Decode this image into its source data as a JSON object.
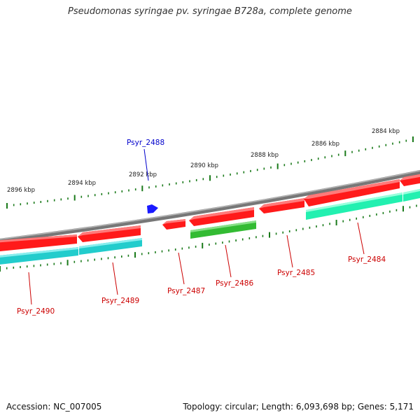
{
  "title": "Pseudomonas syringae pv. syringae B728a, complete genome",
  "footer": {
    "accession": "Accession: NC_007005",
    "summary": "Topology: circular; Length: 6,093,698 bp; Genes: 5,171"
  },
  "colors": {
    "backbone": "#8a8a8a",
    "tick": "#1a7a1a",
    "label_red": "#cc0000",
    "label_blue": "#0000cc",
    "gene_red": "#ff1a1a",
    "gene_teal": "#22cccc",
    "gene_mint": "#22f0b0",
    "gene_green": "#33bb33",
    "gene_blue": "#1a1aff"
  },
  "kbp_labels": [
    "2884 kbp",
    "2886 kbp",
    "2888 kbp",
    "2890 kbp",
    "2892 kbp",
    "2894 kbp",
    "2896 kbp"
  ],
  "genes": [
    {
      "id": "Psyr_2484",
      "color": "red"
    },
    {
      "id": "Psyr_2485",
      "color": "red"
    },
    {
      "id": "Psyr_2486",
      "color": "red"
    },
    {
      "id": "Psyr_2487",
      "color": "red"
    },
    {
      "id": "Psyr_2488",
      "color": "blue"
    },
    {
      "id": "Psyr_2489",
      "color": "red"
    },
    {
      "id": "Psyr_2490",
      "color": "red"
    }
  ]
}
